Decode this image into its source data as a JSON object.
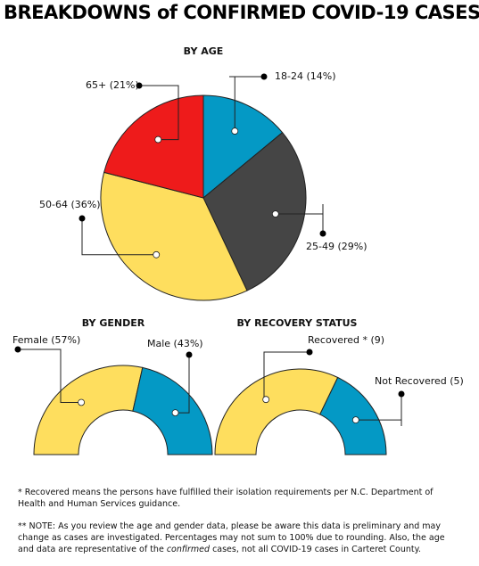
{
  "title": "BREAKDOWNS of CONFIRMED COVID-19 CASES",
  "chart_data": [
    {
      "type": "pie",
      "title": "BY AGE",
      "labels": [
        "18-24 (14%)",
        "25-49 (29%)",
        "50-64 (36%)",
        "65+ (21%)"
      ],
      "values": [
        14,
        29,
        36,
        21
      ],
      "colors": [
        "#0499c5",
        "#454545",
        "#fede5e",
        "#ee1b1b"
      ]
    },
    {
      "type": "semi-donut",
      "title": "BY GENDER",
      "labels": [
        "Female (57%)",
        "Male (43%)"
      ],
      "values": [
        57,
        43
      ],
      "colors": [
        "#fede5e",
        "#0499c5"
      ]
    },
    {
      "type": "semi-donut",
      "title": "BY RECOVERY STATUS",
      "labels": [
        "Recovered * (9)",
        "Not Recovered (5)"
      ],
      "values": [
        9,
        5
      ],
      "colors": [
        "#fede5e",
        "#0499c5"
      ]
    }
  ],
  "notes": [
    "* Recovered means the persons have fulfilled their isolation requirements per N.C. Department of Health and Human Services guidance.",
    [
      "** NOTE: As you review the age and gender data, please be aware this data is preliminary and may change as cases are investigated. Percentages may not sum to 100% due to rounding. Also, the age and data are representative of the ",
      "confirmed",
      " cases, not all COVID-19 cases in Carteret County."
    ]
  ]
}
